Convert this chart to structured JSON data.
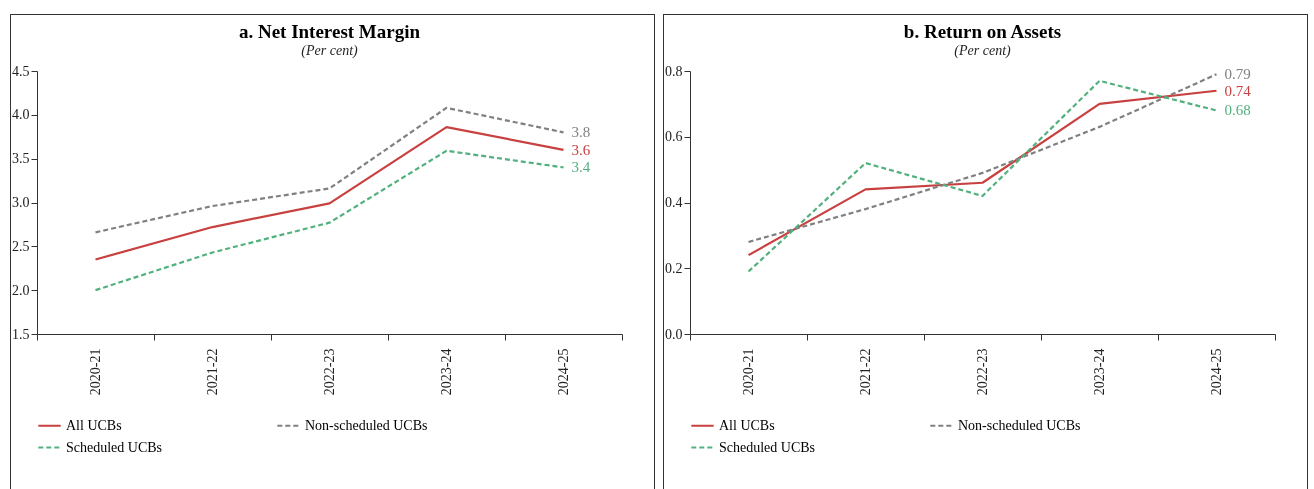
{
  "chart_data": [
    {
      "type": "line",
      "title": "a. Net Interest Margin",
      "subtitle": "(Per cent)",
      "categories": [
        "2020-21",
        "2021-22",
        "2022-23",
        "2023-24",
        "2024-25"
      ],
      "ylim": [
        1.5,
        4.5
      ],
      "yticks": [
        1.5,
        {
          "value": 2,
          "label": "2.0"
        },
        2.5,
        {
          "value": 3,
          "label": "3.0"
        },
        3.5,
        {
          "value": 4,
          "label": "4.0"
        },
        4.5
      ],
      "legend": "bottom",
      "series": [
        {
          "name": "All UCBs",
          "color": "#c8403f",
          "line_style": "solid",
          "values": [
            2.35,
            2.72,
            2.99,
            3.86,
            3.6
          ],
          "value_labels": [
            null,
            null,
            null,
            null,
            "3.6"
          ]
        },
        {
          "name": "Non-scheduled UCBs",
          "color": "#808080",
          "line_style": "dashed",
          "values": [
            2.66,
            2.96,
            3.16,
            4.08,
            3.8
          ],
          "value_labels": [
            null,
            null,
            null,
            null,
            "3.8"
          ]
        },
        {
          "name": "Scheduled UCBs",
          "color": "#52b07e",
          "line_style": "dashed",
          "values": [
            2.0,
            2.43,
            2.77,
            3.59,
            3.4
          ],
          "value_labels": [
            null,
            null,
            null,
            null,
            "3.4"
          ]
        }
      ]
    },
    {
      "type": "line",
      "title": "b. Return on Assets",
      "subtitle": "(Per cent)",
      "categories": [
        "2020-21",
        "2021-22",
        "2022-23",
        "2023-24",
        "2024-25"
      ],
      "ylim": [
        0.0,
        0.8
      ],
      "yticks": [
        {
          "value": 0,
          "label": "0.0"
        },
        0.2,
        0.4,
        0.6,
        0.8
      ],
      "legend": "bottom",
      "series": [
        {
          "name": "All UCBs",
          "color": "#c8403f",
          "line_style": "solid",
          "values": [
            0.24,
            0.44,
            0.46,
            0.7,
            0.74
          ],
          "value_labels": [
            null,
            null,
            null,
            null,
            "0.74"
          ]
        },
        {
          "name": "Non-scheduled UCBs",
          "color": "#808080",
          "line_style": "dashed",
          "values": [
            0.28,
            0.38,
            0.49,
            0.63,
            0.79
          ],
          "value_labels": [
            null,
            null,
            null,
            null,
            "0.79"
          ]
        },
        {
          "name": "Scheduled UCBs",
          "color": "#52b07e",
          "line_style": "dashed",
          "values": [
            0.19,
            0.52,
            0.42,
            0.77,
            0.68
          ],
          "value_labels": [
            null,
            null,
            null,
            null,
            "0.68"
          ]
        }
      ]
    }
  ]
}
